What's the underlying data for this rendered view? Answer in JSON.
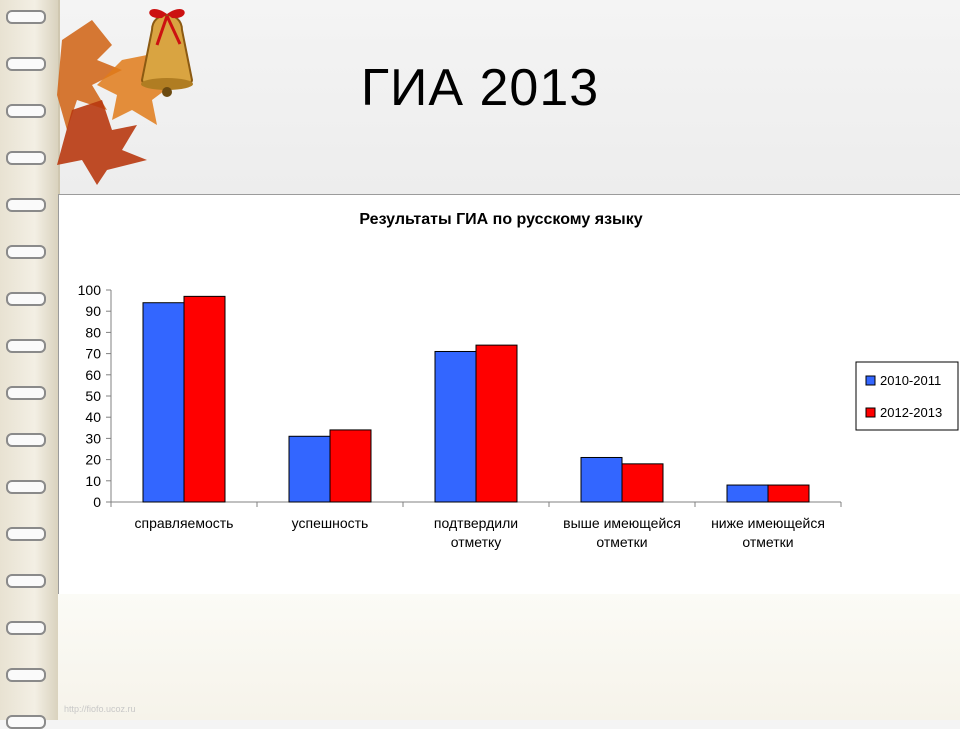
{
  "slide": {
    "title": "ГИА  2013",
    "watermark": "http://fiofo.ucoz.ru"
  },
  "chart_data": {
    "type": "bar",
    "title": "Результаты ГИА по русскому языку",
    "xlabel": "",
    "ylabel": "",
    "ylim": [
      0,
      100
    ],
    "yticks": [
      0,
      10,
      20,
      30,
      40,
      50,
      60,
      70,
      80,
      90,
      100
    ],
    "grid": false,
    "legend_position": "right",
    "categories": [
      [
        "справляемость"
      ],
      [
        "успешность"
      ],
      [
        "подтвердили",
        "отметку"
      ],
      [
        "выше имеющейся",
        "отметки"
      ],
      [
        "ниже имеющейся",
        "отметки"
      ]
    ],
    "series": [
      {
        "name": "2010-2011",
        "color": "#3366ff",
        "values": [
          94,
          31,
          71,
          21,
          8
        ]
      },
      {
        "name": "2012-2013",
        "color": "#ff0000",
        "values": [
          97,
          34,
          74,
          18,
          8
        ]
      }
    ]
  }
}
